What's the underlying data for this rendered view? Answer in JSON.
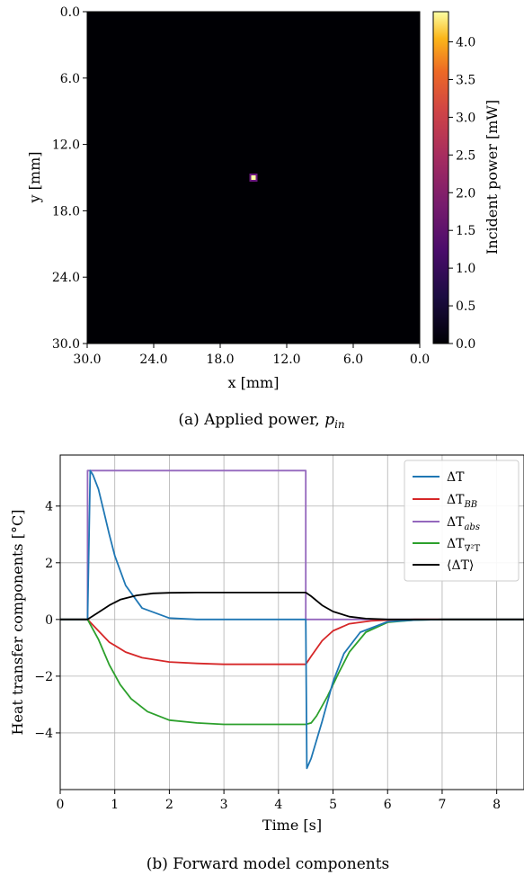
{
  "figure": {
    "caption_a_prefix": "(a) Applied power, ",
    "caption_a_symbol": "p",
    "caption_a_sub": "in",
    "caption_b": "(b) Forward model components"
  },
  "chart_data": [
    {
      "type": "heatmap",
      "xlabel": "x [mm]",
      "ylabel": "y [mm]",
      "xlim": [
        30.0,
        0.0
      ],
      "ylim": [
        30.0,
        0.0
      ],
      "xticks": [
        "30.0",
        "24.0",
        "18.0",
        "12.0",
        "6.0",
        "0.0"
      ],
      "yticks": [
        "0.0",
        "6.0",
        "12.0",
        "18.0",
        "24.0",
        "30.0"
      ],
      "background_value": 0.0,
      "hotspot": {
        "x": 15.0,
        "y": 15.0,
        "value": 4.4
      },
      "colorbar": {
        "label": "Incident power [mW]",
        "range": [
          0.0,
          4.4
        ],
        "ticks": [
          "0.0",
          "0.5",
          "1.0",
          "1.5",
          "2.0",
          "2.5",
          "3.0",
          "3.5",
          "4.0"
        ],
        "colormap": "inferno"
      }
    },
    {
      "type": "line",
      "xlabel": "Time [s]",
      "ylabel": "Heat transfer components [°C]",
      "xlim": [
        0,
        8.5
      ],
      "ylim": [
        -6.0,
        5.8
      ],
      "xticks": [
        "0",
        "1",
        "2",
        "3",
        "4",
        "5",
        "6",
        "7",
        "8"
      ],
      "yticks": [
        "4",
        "2",
        "0",
        "−2",
        "−4"
      ],
      "grid": true,
      "legend_position": "top-right",
      "series": [
        {
          "name": "ΔT",
          "color": "#1f77b4",
          "x": [
            0,
            0.5,
            0.55,
            0.6,
            0.7,
            0.8,
            0.9,
            1.0,
            1.2,
            1.5,
            2.0,
            2.5,
            4.5,
            4.52,
            4.6,
            4.8,
            5.0,
            5.2,
            5.5,
            6.0,
            6.5,
            7.0,
            8.5
          ],
          "y": [
            0,
            0,
            5.25,
            5.1,
            4.6,
            3.8,
            3.0,
            2.25,
            1.2,
            0.4,
            0.05,
            0.0,
            0.0,
            -5.25,
            -4.9,
            -3.6,
            -2.2,
            -1.2,
            -0.45,
            -0.08,
            -0.02,
            0.0,
            0.0
          ]
        },
        {
          "name": "ΔT_BB",
          "color": "#d62728",
          "x": [
            0,
            0.5,
            0.7,
            0.9,
            1.2,
            1.5,
            2.0,
            2.5,
            3.0,
            4.5,
            4.6,
            4.8,
            5.0,
            5.3,
            5.7,
            6.0,
            6.5,
            7.0,
            8.5
          ],
          "y": [
            0,
            0,
            -0.4,
            -0.8,
            -1.15,
            -1.35,
            -1.5,
            -1.55,
            -1.58,
            -1.58,
            -1.3,
            -0.75,
            -0.4,
            -0.15,
            -0.05,
            -0.02,
            0.0,
            0.0,
            0.0
          ]
        },
        {
          "name": "ΔT_abs",
          "color": "#9467bd",
          "x": [
            0,
            0.5,
            0.5,
            4.5,
            4.5,
            8.5
          ],
          "y": [
            0,
            0,
            5.25,
            5.25,
            0,
            0
          ]
        },
        {
          "name": "ΔT_∇2T",
          "color": "#2ca02c",
          "x": [
            0,
            0.5,
            0.7,
            0.9,
            1.1,
            1.3,
            1.6,
            2.0,
            2.5,
            3.0,
            4.5,
            4.6,
            4.7,
            4.9,
            5.1,
            5.3,
            5.6,
            6.0,
            6.5,
            7.0,
            8.5
          ],
          "y": [
            0,
            0,
            -0.7,
            -1.6,
            -2.3,
            -2.8,
            -3.25,
            -3.55,
            -3.65,
            -3.7,
            -3.7,
            -3.65,
            -3.4,
            -2.7,
            -1.9,
            -1.15,
            -0.45,
            -0.1,
            -0.02,
            0.0,
            0.0
          ]
        },
        {
          "name": "⟨ΔT⟩",
          "color": "#000000",
          "x": [
            0,
            0.5,
            0.7,
            0.9,
            1.1,
            1.4,
            1.7,
            2.0,
            2.5,
            4.5,
            4.6,
            4.8,
            5.0,
            5.3,
            5.6,
            6.0,
            6.5,
            8.5
          ],
          "y": [
            0,
            0,
            0.25,
            0.5,
            0.7,
            0.85,
            0.92,
            0.94,
            0.95,
            0.95,
            0.82,
            0.5,
            0.28,
            0.1,
            0.03,
            0.0,
            0.0,
            0.0
          ]
        }
      ]
    }
  ]
}
